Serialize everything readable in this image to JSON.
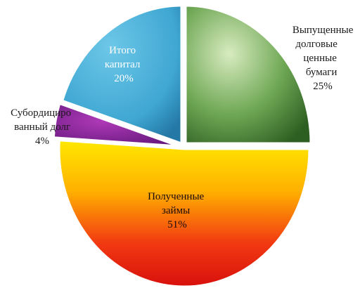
{
  "chart_data": {
    "type": "pie",
    "title": "",
    "slices": [
      {
        "label": [
          "Выпущенные",
          "долговые",
          "ценные",
          "бумаги"
        ],
        "value": 25,
        "pct": "25%",
        "color": "#4f8a3c"
      },
      {
        "label": [
          "Полученные",
          "займы"
        ],
        "value": 51,
        "pct": "51%",
        "color": "#f14a14"
      },
      {
        "label": [
          "Субордициро",
          "ванный долг"
        ],
        "value": 4,
        "pct": "4%",
        "color": "#7b1f8f"
      },
      {
        "label": [
          "Итого",
          "капитал"
        ],
        "value": 20,
        "pct": "20%",
        "color": "#4fb0d6"
      }
    ]
  }
}
